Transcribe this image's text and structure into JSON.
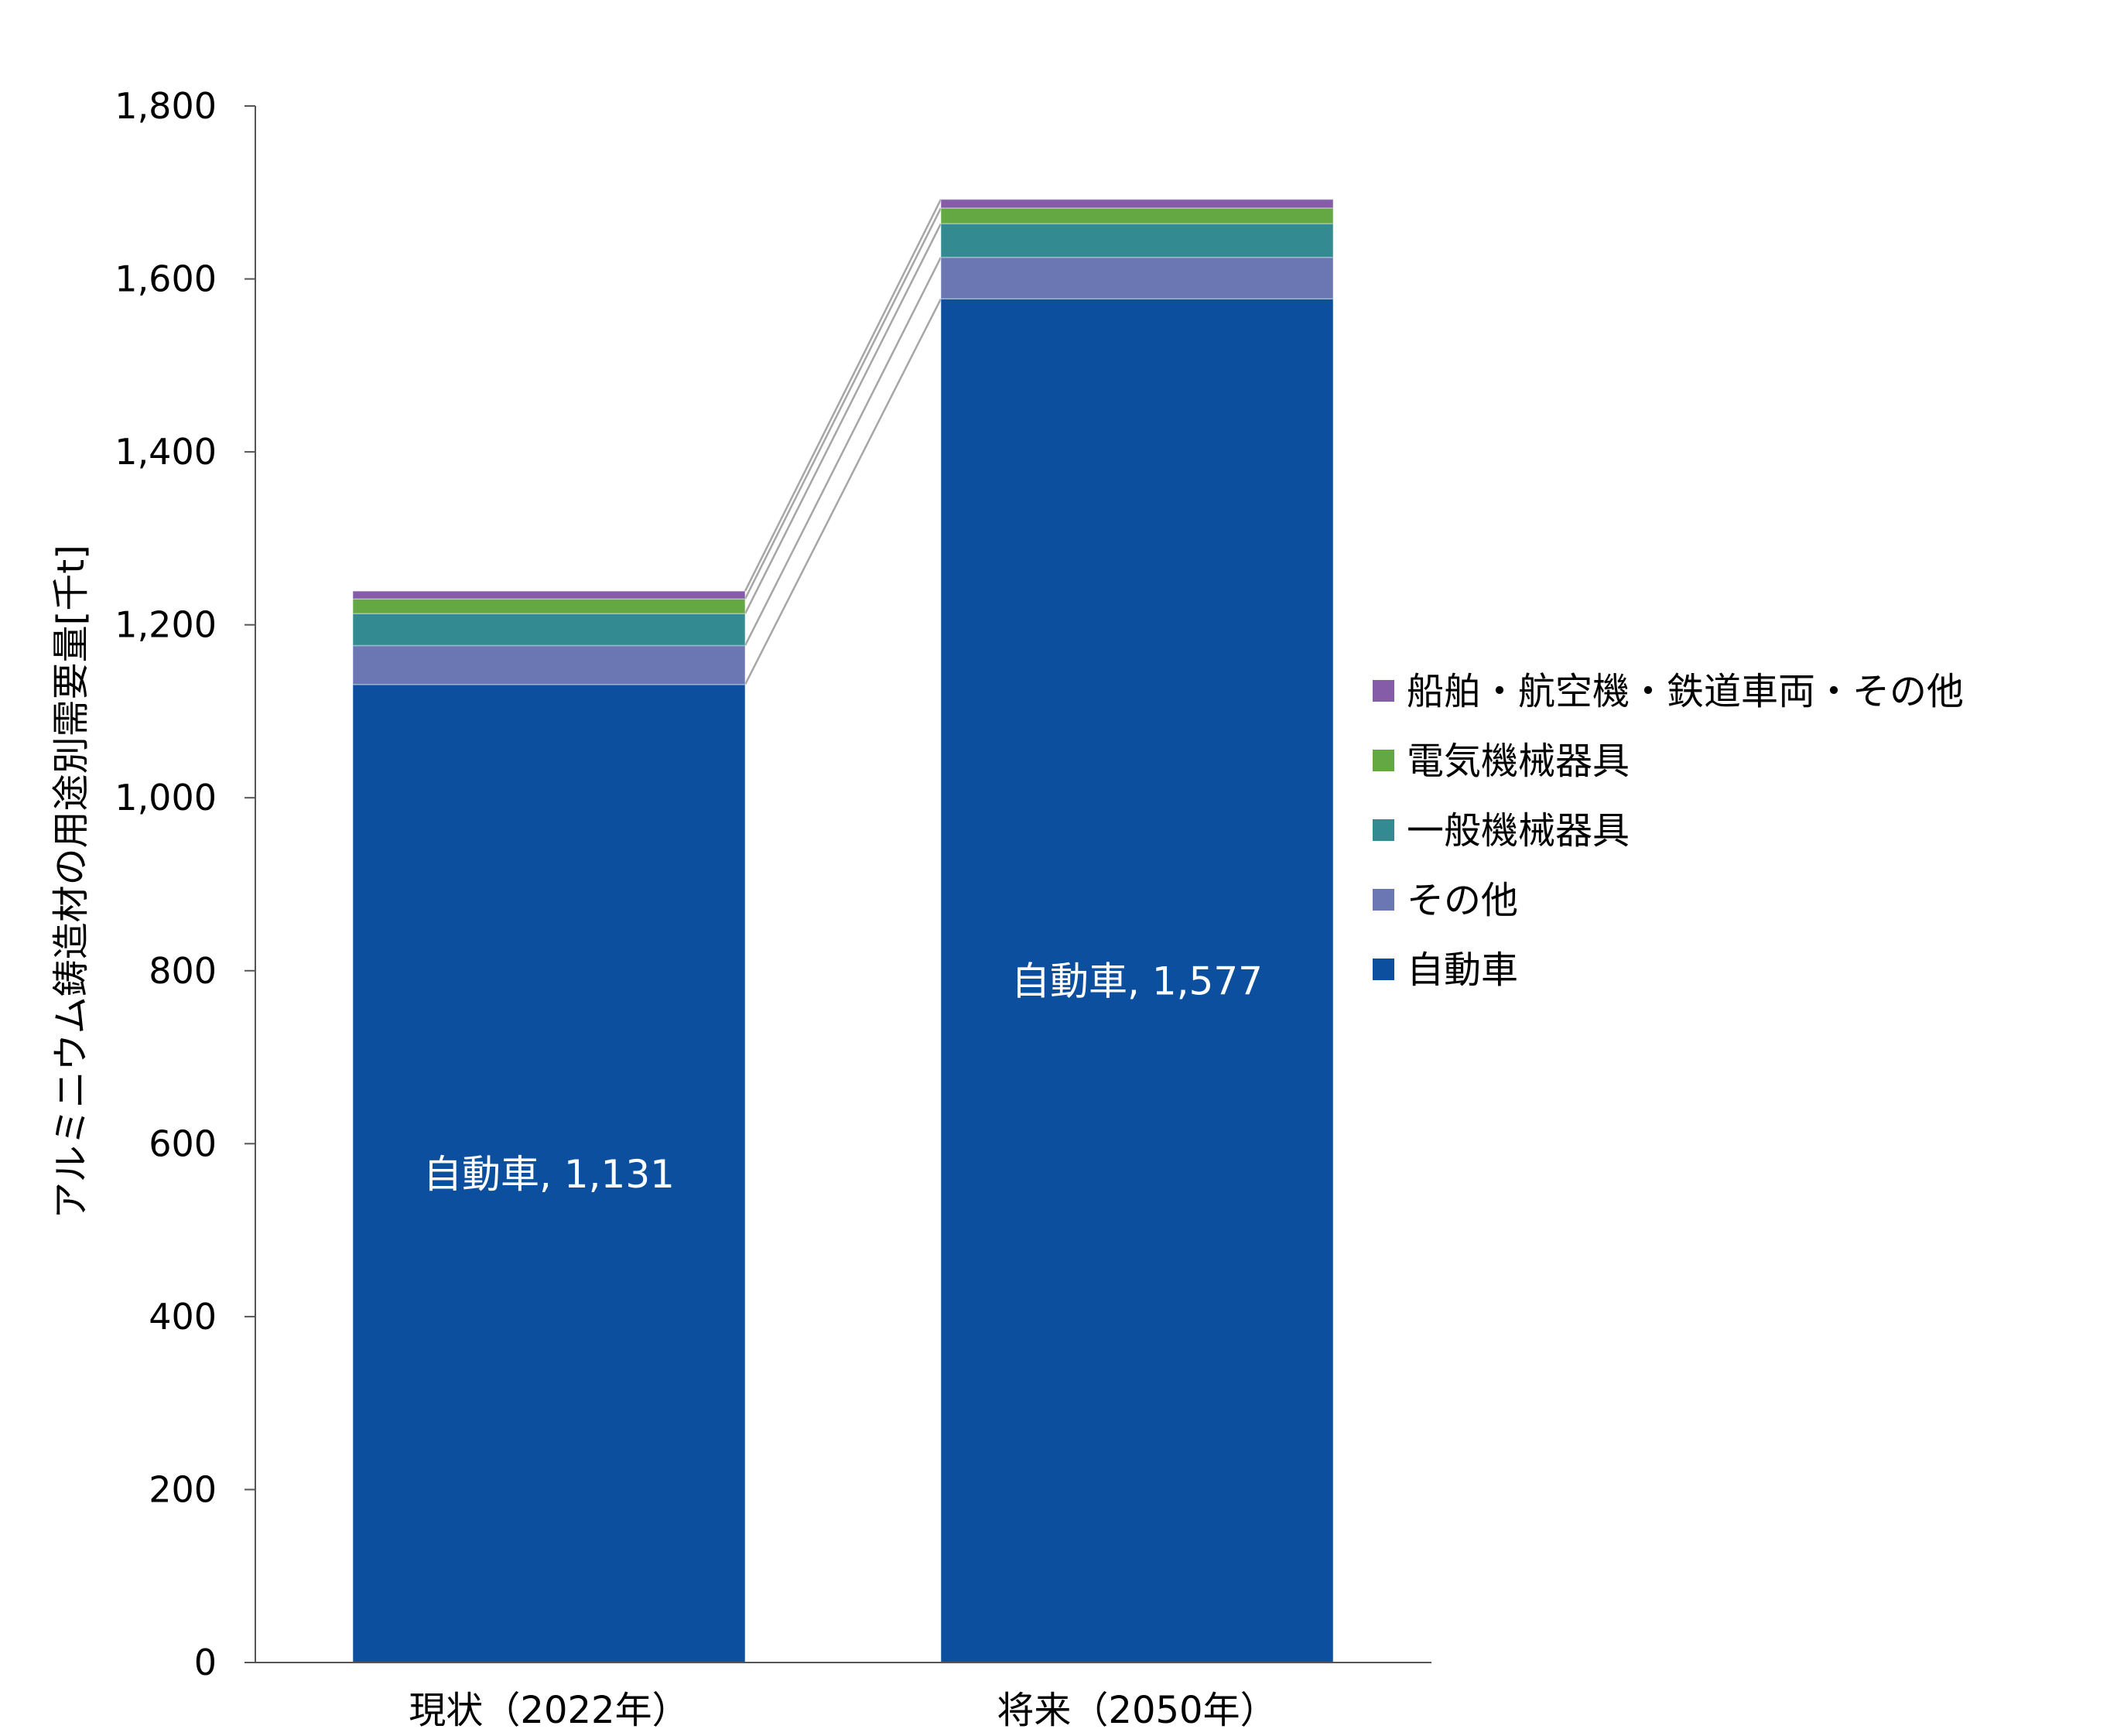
{
  "chart_data": {
    "type": "bar",
    "stacked": true,
    "title": "",
    "xlabel": "",
    "ylabel": "アルミニウム鋳造材の用途別需要量[千t]",
    "ylim": [
      0,
      1800
    ],
    "yticks": [
      0,
      200,
      400,
      600,
      800,
      1000,
      1200,
      1400,
      1600,
      1800
    ],
    "ytick_labels": [
      "0",
      "200",
      "400",
      "600",
      "800",
      "1,000",
      "1,200",
      "1,400",
      "1,600",
      "1,800"
    ],
    "categories": [
      "現状（2022年）",
      "将来（2050年）"
    ],
    "series": [
      {
        "name": "自動車",
        "color": "#0b4f9e",
        "values": [
          1131,
          1577
        ]
      },
      {
        "name": "その他",
        "color": "#6a77b3",
        "values": [
          45,
          48
        ]
      },
      {
        "name": "一般機械器具",
        "color": "#338b91",
        "values": [
          37,
          39
        ]
      },
      {
        "name": "電気機械器具",
        "color": "#64a843",
        "values": [
          17,
          18
        ]
      },
      {
        "name": "船舶・航空機・鉄道車両・その他",
        "color": "#845ca8",
        "values": [
          9,
          10
        ]
      }
    ],
    "data_labels": [
      "自動車, 1,131",
      "自動車, 1,577"
    ],
    "legend_position": "right",
    "series_lines": true,
    "grid": false
  }
}
